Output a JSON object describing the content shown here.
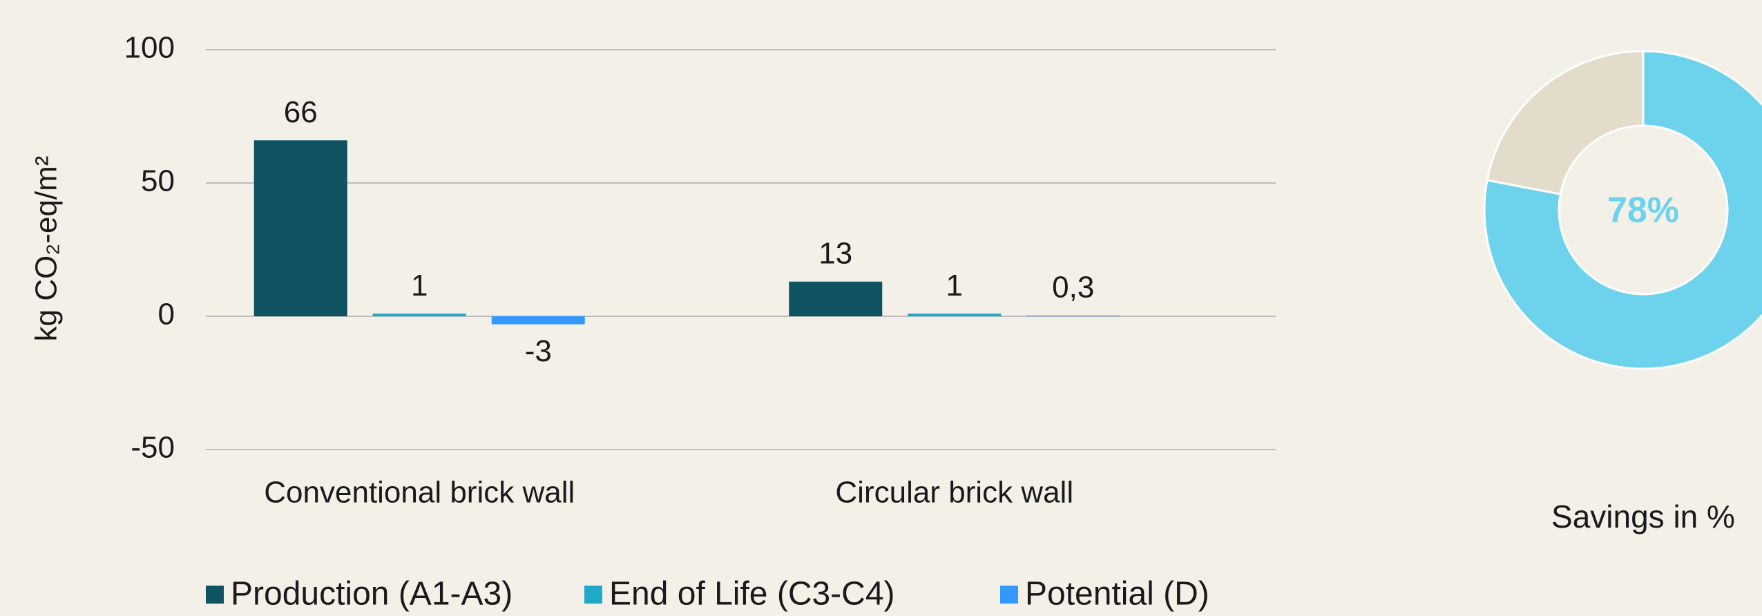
{
  "chart_data": [
    {
      "type": "bar",
      "ylabel": "kg CO₂-eq/m²",
      "categories": [
        "Conventional brick wall",
        "Circular brick wall"
      ],
      "series": [
        {
          "name": "Production (A1-A3)",
          "color": "#0f5261",
          "values": [
            66,
            13
          ]
        },
        {
          "name": "End of Life (C3-C4)",
          "color": "#1fa8c8",
          "values": [
            1,
            1
          ]
        },
        {
          "name": "Potential (D)",
          "color": "#3399ff",
          "values": [
            -3,
            0.3
          ],
          "value_labels": [
            "-3",
            "0,3"
          ]
        }
      ],
      "ylim": [
        -50,
        100
      ],
      "yticks": [
        -50,
        0,
        50,
        100
      ],
      "grid": true,
      "legend": "bottom"
    },
    {
      "type": "donut",
      "values": [
        78,
        22
      ],
      "colors": [
        "#6dd3ec",
        "#e3dccb"
      ],
      "center_label": "78%",
      "caption": "Savings in %"
    }
  ]
}
